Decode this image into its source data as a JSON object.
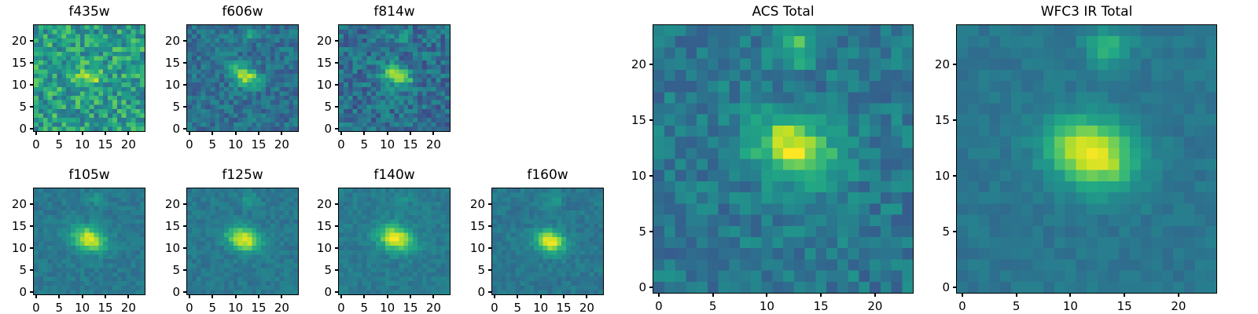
{
  "figure": {
    "background": "#ffffff",
    "frame_color": "#000000",
    "text_color": "#000000",
    "colormap_name": "viridis",
    "colormap_stops": [
      [
        0.0,
        "#440154"
      ],
      [
        0.1,
        "#482475"
      ],
      [
        0.2,
        "#414487"
      ],
      [
        0.3,
        "#355f8d"
      ],
      [
        0.4,
        "#2a788e"
      ],
      [
        0.5,
        "#21918c"
      ],
      [
        0.6,
        "#22a884"
      ],
      [
        0.7,
        "#44bf70"
      ],
      [
        0.8,
        "#7ad151"
      ],
      [
        0.9,
        "#bddf26"
      ],
      [
        1.0,
        "#fde725"
      ]
    ]
  },
  "chart_data": [
    {
      "type": "heatmap",
      "title": "f435w",
      "grid_size": [
        24,
        24
      ],
      "x_range": [
        -0.5,
        23.5
      ],
      "y_range": [
        -0.5,
        23.5
      ],
      "x_ticks": [
        0,
        5,
        10,
        15,
        20
      ],
      "y_ticks": [
        0,
        5,
        10,
        15,
        20
      ],
      "colormap": "viridis",
      "background_level": 0.56,
      "noise_level": 0.21,
      "blobs": [
        {
          "cx": 11.5,
          "cy": 12,
          "amp": 0.28,
          "sx": 2.0,
          "sy": 1.4,
          "angle": -25
        }
      ],
      "seed": 101,
      "description": "Very noisy shallow blue-optical cutout; faint source near (12,12)."
    },
    {
      "type": "heatmap",
      "title": "f606w",
      "grid_size": [
        24,
        24
      ],
      "x_range": [
        -0.5,
        23.5
      ],
      "y_range": [
        -0.5,
        23.5
      ],
      "x_ticks": [
        0,
        5,
        10,
        15,
        20
      ],
      "y_ticks": [
        0,
        5,
        10,
        15,
        20
      ],
      "colormap": "viridis",
      "background_level": 0.37,
      "noise_level": 0.12,
      "blobs": [
        {
          "cx": 12,
          "cy": 12,
          "amp": 0.55,
          "sx": 2.2,
          "sy": 1.4,
          "angle": -25
        },
        {
          "cx": 13,
          "cy": 21,
          "amp": 0.18,
          "sx": 1.2,
          "sy": 1.0,
          "angle": 0
        }
      ],
      "seed": 202,
      "description": "Optical cutout; bright elongated galaxy at (12,12), faint companion near top."
    },
    {
      "type": "heatmap",
      "title": "f814w",
      "grid_size": [
        24,
        24
      ],
      "x_range": [
        -0.5,
        23.5
      ],
      "y_range": [
        -0.5,
        23.5
      ],
      "x_ticks": [
        0,
        5,
        10,
        15,
        20
      ],
      "y_ticks": [
        0,
        5,
        10,
        15,
        20
      ],
      "colormap": "viridis",
      "background_level": 0.36,
      "noise_level": 0.15,
      "blobs": [
        {
          "cx": 12,
          "cy": 12,
          "amp": 0.58,
          "sx": 2.3,
          "sy": 1.5,
          "angle": -25
        },
        {
          "cx": 13,
          "cy": 21,
          "amp": 0.16,
          "sx": 1.1,
          "sy": 1.0,
          "angle": 0
        }
      ],
      "seed": 303,
      "description": "Optical cutout; bright elongated galaxy at (12,12)."
    },
    {
      "type": "heatmap",
      "title": "f105w",
      "grid_size": [
        24,
        24
      ],
      "x_range": [
        -0.5,
        23.5
      ],
      "y_range": [
        -0.5,
        23.5
      ],
      "x_ticks": [
        0,
        5,
        10,
        15,
        20
      ],
      "y_ticks": [
        0,
        5,
        10,
        15,
        20
      ],
      "colormap": "viridis",
      "background_level": 0.4,
      "noise_level": 0.06,
      "blobs": [
        {
          "cx": 11.5,
          "cy": 12,
          "amp": 0.56,
          "sx": 2.6,
          "sy": 1.8,
          "angle": -20
        },
        {
          "cx": 13,
          "cy": 21,
          "amp": 0.12,
          "sx": 1.2,
          "sy": 1.0,
          "angle": 0
        }
      ],
      "seed": 404,
      "description": "Smooth IR cutout; bright extended galaxy at (12,12)."
    },
    {
      "type": "heatmap",
      "title": "f125w",
      "grid_size": [
        24,
        24
      ],
      "x_range": [
        -0.5,
        23.5
      ],
      "y_range": [
        -0.5,
        23.5
      ],
      "x_ticks": [
        0,
        5,
        10,
        15,
        20
      ],
      "y_ticks": [
        0,
        5,
        10,
        15,
        20
      ],
      "colormap": "viridis",
      "background_level": 0.4,
      "noise_level": 0.06,
      "blobs": [
        {
          "cx": 11.8,
          "cy": 12,
          "amp": 0.58,
          "sx": 2.6,
          "sy": 1.8,
          "angle": -20
        },
        {
          "cx": 13,
          "cy": 21,
          "amp": 0.13,
          "sx": 1.2,
          "sy": 1.0,
          "angle": 0
        }
      ],
      "seed": 505,
      "description": "Smooth IR cutout; bright extended galaxy at (12,12)."
    },
    {
      "type": "heatmap",
      "title": "f140w",
      "grid_size": [
        24,
        24
      ],
      "x_range": [
        -0.5,
        23.5
      ],
      "y_range": [
        -0.5,
        23.5
      ],
      "x_ticks": [
        0,
        5,
        10,
        15,
        20
      ],
      "y_ticks": [
        0,
        5,
        10,
        15,
        20
      ],
      "colormap": "viridis",
      "background_level": 0.41,
      "noise_level": 0.06,
      "blobs": [
        {
          "cx": 11.8,
          "cy": 12.2,
          "amp": 0.58,
          "sx": 2.7,
          "sy": 1.9,
          "angle": -20
        },
        {
          "cx": 13,
          "cy": 21,
          "amp": 0.13,
          "sx": 1.2,
          "sy": 1.0,
          "angle": 0
        }
      ],
      "seed": 606,
      "description": "Smooth IR cutout; bright extended galaxy at (12,12)."
    },
    {
      "type": "heatmap",
      "title": "f160w",
      "grid_size": [
        24,
        24
      ],
      "x_range": [
        -0.5,
        23.5
      ],
      "y_range": [
        -0.5,
        23.5
      ],
      "x_ticks": [
        0,
        5,
        10,
        15,
        20
      ],
      "y_ticks": [
        0,
        5,
        10,
        15,
        20
      ],
      "colormap": "viridis",
      "background_level": 0.4,
      "noise_level": 0.06,
      "blobs": [
        {
          "cx": 12,
          "cy": 11.5,
          "amp": 0.6,
          "sx": 2.2,
          "sy": 1.7,
          "angle": -15
        },
        {
          "cx": 13,
          "cy": 21,
          "amp": 0.14,
          "sx": 1.2,
          "sy": 1.0,
          "angle": 0
        }
      ],
      "seed": 707,
      "description": "Smooth IR cutout; compact bright galaxy at (12,11.5)."
    },
    {
      "type": "heatmap",
      "title": "ACS Total",
      "grid_size": [
        24,
        24
      ],
      "x_range": [
        -0.5,
        23.5
      ],
      "y_range": [
        -0.5,
        23.5
      ],
      "x_ticks": [
        0,
        5,
        10,
        15,
        20
      ],
      "y_ticks": [
        0,
        5,
        10,
        15,
        20
      ],
      "colormap": "viridis",
      "background_level": 0.4,
      "noise_level": 0.11,
      "blobs": [
        {
          "cx": 12.5,
          "cy": 12.5,
          "amp": 0.58,
          "sx": 2.6,
          "sy": 1.9,
          "angle": -20
        },
        {
          "cx": 13,
          "cy": 21.5,
          "amp": 0.3,
          "sx": 1.3,
          "sy": 1.1,
          "angle": 0
        }
      ],
      "seed": 808,
      "description": "Stacked ACS optical image; bright galaxy at (12.5,12.5) with companion blob near (13,21.5)."
    },
    {
      "type": "heatmap",
      "title": "WFC3 IR Total",
      "grid_size": [
        24,
        24
      ],
      "x_range": [
        -0.5,
        23.5
      ],
      "y_range": [
        -0.5,
        23.5
      ],
      "x_ticks": [
        0,
        5,
        10,
        15,
        20
      ],
      "y_ticks": [
        0,
        5,
        10,
        15,
        20
      ],
      "colormap": "viridis",
      "background_level": 0.39,
      "noise_level": 0.045,
      "blobs": [
        {
          "cx": 12,
          "cy": 12,
          "amp": 0.62,
          "sx": 2.8,
          "sy": 2.0,
          "angle": -20
        },
        {
          "cx": 13.5,
          "cy": 21.5,
          "amp": 0.26,
          "sx": 1.4,
          "sy": 1.2,
          "angle": 0
        }
      ],
      "seed": 909,
      "description": "Stacked WFC3 IR image; smooth bright extended galaxy at (12,12) with faint companion near top."
    }
  ]
}
